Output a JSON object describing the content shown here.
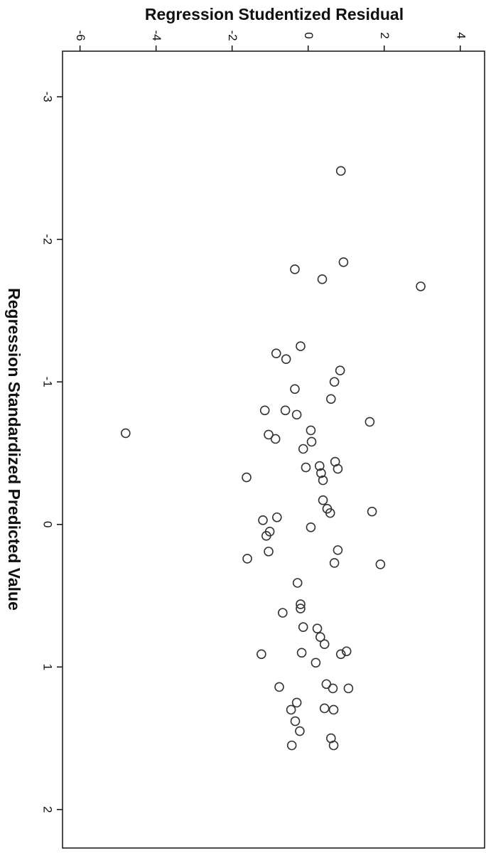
{
  "chart_data": {
    "type": "scatter",
    "title": "Regression Studentized Residual",
    "x_label": "Regression Standardized Predicted Value",
    "x": [
      -2.48,
      -1.84,
      -1.79,
      -1.72,
      -1.67,
      -1.25,
      -1.2,
      -1.16,
      -1.08,
      -1.0,
      -0.95,
      -0.88,
      -0.8,
      -0.8,
      -0.77,
      -0.72,
      -0.64,
      -0.66,
      -0.63,
      -0.6,
      -0.58,
      -0.53,
      -0.44,
      -0.41,
      -0.4,
      -0.39,
      -0.36,
      -0.31,
      -0.33,
      -0.17,
      -0.11,
      -0.08,
      -0.09,
      -0.05,
      -0.03,
      0.02,
      0.05,
      0.08,
      0.18,
      0.19,
      0.24,
      0.27,
      0.28,
      0.41,
      0.56,
      0.59,
      0.62,
      0.72,
      0.73,
      0.79,
      0.84,
      0.89,
      0.91,
      0.91,
      0.9,
      0.97,
      1.14,
      1.12,
      1.15,
      1.15,
      1.25,
      1.29,
      1.3,
      1.3,
      1.38,
      1.45,
      1.5,
      1.55,
      1.55
    ],
    "values": [
      0.86,
      0.93,
      -0.35,
      0.37,
      2.96,
      -0.2,
      -0.84,
      -0.58,
      0.84,
      0.69,
      -0.35,
      0.6,
      -1.14,
      -0.6,
      -0.3,
      1.62,
      -4.8,
      0.07,
      -1.04,
      -0.86,
      0.09,
      -0.13,
      0.71,
      0.3,
      -0.06,
      0.78,
      0.34,
      0.39,
      -1.62,
      0.39,
      0.5,
      0.58,
      1.68,
      -0.82,
      -1.19,
      0.07,
      -1.01,
      -1.1,
      0.78,
      -1.04,
      -1.6,
      0.69,
      1.9,
      -0.28,
      -0.2,
      -0.2,
      -0.67,
      -0.13,
      0.24,
      0.32,
      0.43,
      1.01,
      0.86,
      -1.23,
      -0.17,
      0.2,
      -0.76,
      0.48,
      0.65,
      1.06,
      -0.3,
      0.43,
      0.67,
      -0.45,
      -0.34,
      -0.22,
      0.6,
      0.67,
      -0.43
    ],
    "color": "#333333",
    "xlim": [
      -3.32,
      2.27
    ],
    "xticks": [
      -3,
      -2,
      -1,
      0,
      1,
      2
    ],
    "ylim": [
      -6.46,
      4.64
    ],
    "yticks": [
      -6,
      -4,
      -2,
      0,
      2,
      4
    ]
  }
}
